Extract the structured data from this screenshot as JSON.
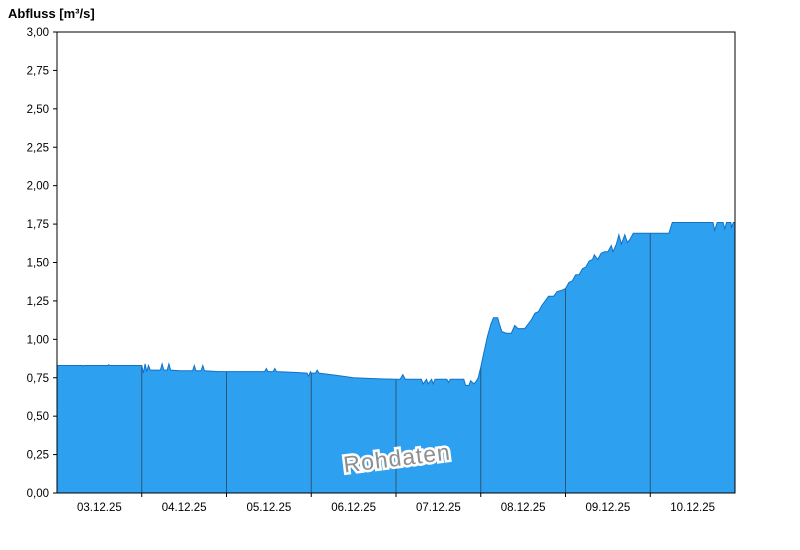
{
  "chart_data": {
    "type": "area",
    "title": "Abfluss [m³/s]",
    "ylabel": "Abfluss [m³/s]",
    "xlabel": "",
    "ylim": [
      0,
      3
    ],
    "xlim_days": [
      0,
      8
    ],
    "grid": "vertical-day-boundaries",
    "watermark": "Rohdaten",
    "colors": {
      "fill": "#2da0f0",
      "line": "#1272c8",
      "grid": "#2b4a66",
      "axis": "#000000"
    },
    "yticks": [
      {
        "v": 0.0,
        "label": "0,00"
      },
      {
        "v": 0.25,
        "label": "0,25"
      },
      {
        "v": 0.5,
        "label": "0,50"
      },
      {
        "v": 0.75,
        "label": "0,75"
      },
      {
        "v": 1.0,
        "label": "1,00"
      },
      {
        "v": 1.25,
        "label": "1,25"
      },
      {
        "v": 1.5,
        "label": "1,50"
      },
      {
        "v": 1.75,
        "label": "1,75"
      },
      {
        "v": 2.0,
        "label": "2,00"
      },
      {
        "v": 2.25,
        "label": "2,25"
      },
      {
        "v": 2.5,
        "label": "2,50"
      },
      {
        "v": 2.75,
        "label": "2,75"
      },
      {
        "v": 3.0,
        "label": "3,00"
      }
    ],
    "categories": [
      "03.12.25",
      "04.12.25",
      "05.12.25",
      "06.12.25",
      "07.12.25",
      "08.12.25",
      "09.12.25",
      "10.12.25"
    ],
    "series": [
      {
        "name": "Abfluss Rohdaten",
        "unit": "m³/s",
        "points": [
          [
            0.0,
            0.83
          ],
          [
            0.3,
            0.83
          ],
          [
            0.31,
            0.825
          ],
          [
            0.32,
            0.83
          ],
          [
            0.6,
            0.83
          ],
          [
            0.61,
            0.835
          ],
          [
            0.62,
            0.83
          ],
          [
            0.95,
            0.83
          ],
          [
            1.0,
            0.83
          ],
          [
            1.02,
            0.78
          ],
          [
            1.04,
            0.84
          ],
          [
            1.06,
            0.79
          ],
          [
            1.08,
            0.83
          ],
          [
            1.1,
            0.8
          ],
          [
            1.15,
            0.8
          ],
          [
            1.22,
            0.8
          ],
          [
            1.24,
            0.84
          ],
          [
            1.26,
            0.8
          ],
          [
            1.3,
            0.8
          ],
          [
            1.32,
            0.84
          ],
          [
            1.34,
            0.8
          ],
          [
            1.45,
            0.795
          ],
          [
            1.6,
            0.795
          ],
          [
            1.62,
            0.83
          ],
          [
            1.64,
            0.795
          ],
          [
            1.7,
            0.795
          ],
          [
            1.72,
            0.83
          ],
          [
            1.74,
            0.795
          ],
          [
            1.9,
            0.79
          ],
          [
            2.3,
            0.79
          ],
          [
            2.45,
            0.79
          ],
          [
            2.47,
            0.81
          ],
          [
            2.49,
            0.79
          ],
          [
            2.55,
            0.79
          ],
          [
            2.57,
            0.81
          ],
          [
            2.59,
            0.79
          ],
          [
            2.8,
            0.785
          ],
          [
            2.95,
            0.78
          ],
          [
            2.97,
            0.76
          ],
          [
            2.99,
            0.79
          ],
          [
            3.0,
            0.78
          ],
          [
            3.05,
            0.78
          ],
          [
            3.07,
            0.8
          ],
          [
            3.09,
            0.78
          ],
          [
            3.3,
            0.765
          ],
          [
            3.5,
            0.75
          ],
          [
            3.7,
            0.745
          ],
          [
            4.0,
            0.74
          ],
          [
            4.05,
            0.74
          ],
          [
            4.08,
            0.77
          ],
          [
            4.11,
            0.74
          ],
          [
            4.3,
            0.74
          ],
          [
            4.32,
            0.71
          ],
          [
            4.36,
            0.74
          ],
          [
            4.38,
            0.71
          ],
          [
            4.42,
            0.74
          ],
          [
            4.44,
            0.71
          ],
          [
            4.46,
            0.74
          ],
          [
            4.6,
            0.74
          ],
          [
            4.62,
            0.72
          ],
          [
            4.64,
            0.74
          ],
          [
            4.8,
            0.74
          ],
          [
            4.82,
            0.7
          ],
          [
            4.86,
            0.7
          ],
          [
            4.88,
            0.73
          ],
          [
            4.92,
            0.71
          ],
          [
            4.95,
            0.73
          ],
          [
            4.97,
            0.75
          ],
          [
            5.0,
            0.82
          ],
          [
            5.04,
            0.92
          ],
          [
            5.08,
            1.02
          ],
          [
            5.12,
            1.1
          ],
          [
            5.15,
            1.14
          ],
          [
            5.2,
            1.14
          ],
          [
            5.22,
            1.1
          ],
          [
            5.25,
            1.05
          ],
          [
            5.3,
            1.04
          ],
          [
            5.36,
            1.04
          ],
          [
            5.4,
            1.09
          ],
          [
            5.44,
            1.07
          ],
          [
            5.52,
            1.07
          ],
          [
            5.56,
            1.1
          ],
          [
            5.6,
            1.13
          ],
          [
            5.64,
            1.17
          ],
          [
            5.68,
            1.18
          ],
          [
            5.72,
            1.22
          ],
          [
            5.76,
            1.25
          ],
          [
            5.8,
            1.28
          ],
          [
            5.86,
            1.28
          ],
          [
            5.9,
            1.31
          ],
          [
            5.96,
            1.32
          ],
          [
            6.0,
            1.33
          ],
          [
            6.04,
            1.37
          ],
          [
            6.08,
            1.38
          ],
          [
            6.12,
            1.42
          ],
          [
            6.16,
            1.42
          ],
          [
            6.2,
            1.46
          ],
          [
            6.24,
            1.47
          ],
          [
            6.28,
            1.51
          ],
          [
            6.32,
            1.52
          ],
          [
            6.34,
            1.55
          ],
          [
            6.38,
            1.52
          ],
          [
            6.42,
            1.56
          ],
          [
            6.46,
            1.57
          ],
          [
            6.5,
            1.57
          ],
          [
            6.54,
            1.61
          ],
          [
            6.56,
            1.57
          ],
          [
            6.6,
            1.62
          ],
          [
            6.63,
            1.68
          ],
          [
            6.66,
            1.62
          ],
          [
            6.7,
            1.68
          ],
          [
            6.73,
            1.63
          ],
          [
            6.76,
            1.65
          ],
          [
            6.8,
            1.69
          ],
          [
            7.0,
            1.69
          ],
          [
            7.22,
            1.69
          ],
          [
            7.26,
            1.76
          ],
          [
            7.4,
            1.76
          ],
          [
            7.6,
            1.76
          ],
          [
            7.74,
            1.76
          ],
          [
            7.76,
            1.71
          ],
          [
            7.79,
            1.76
          ],
          [
            7.86,
            1.76
          ],
          [
            7.88,
            1.72
          ],
          [
            7.9,
            1.76
          ],
          [
            7.95,
            1.76
          ],
          [
            7.96,
            1.73
          ],
          [
            7.98,
            1.76
          ],
          [
            8.0,
            1.76
          ]
        ]
      }
    ]
  }
}
